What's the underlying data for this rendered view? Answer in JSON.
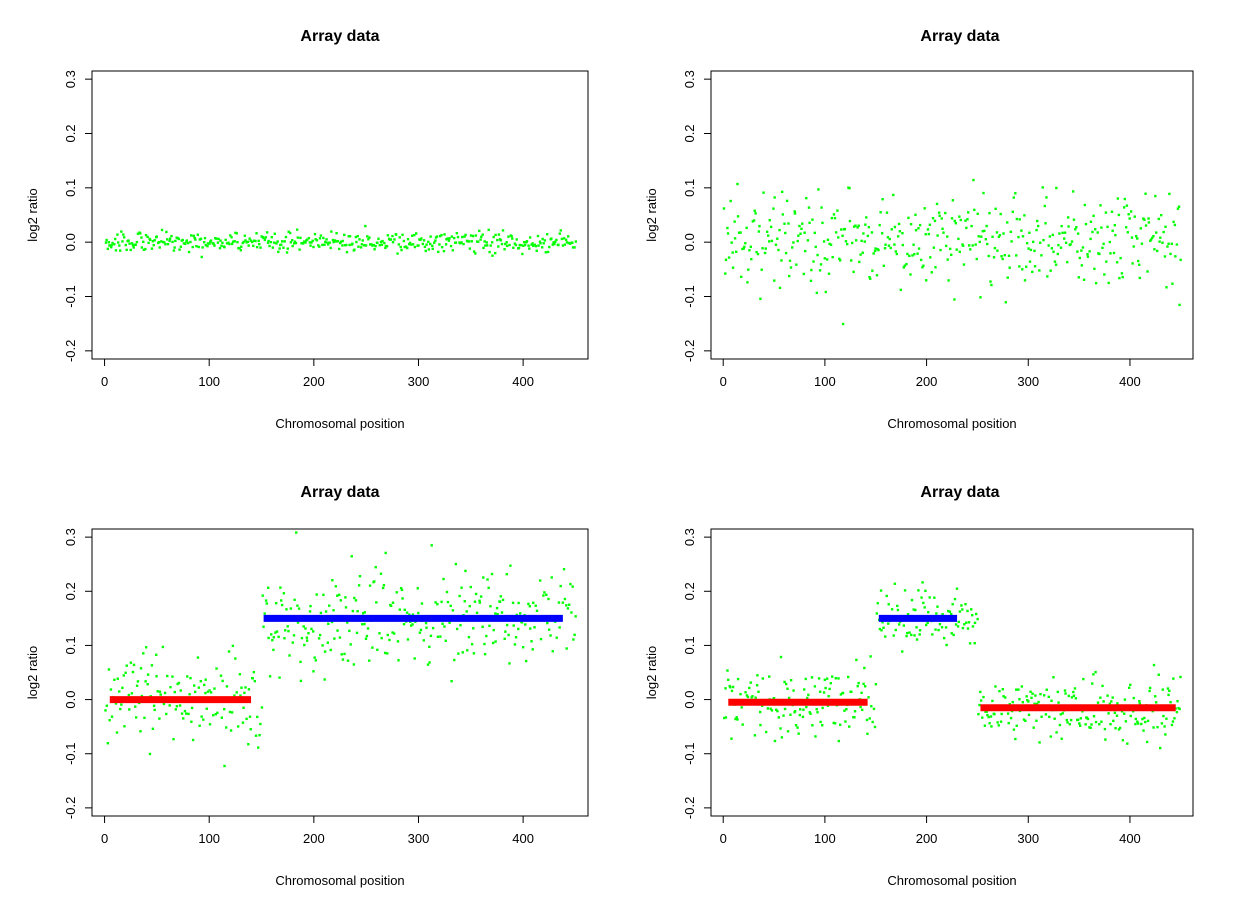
{
  "chart_data": [
    {
      "type": "scatter",
      "title": "Array data",
      "xlabel": "Chromosomal position",
      "ylabel": "log2 ratio",
      "xlim": [
        -12,
        462
      ],
      "ylim": [
        -0.215,
        0.315
      ],
      "xticks": [
        0,
        100,
        200,
        300,
        400
      ],
      "yticks": [
        -0.2,
        -0.1,
        0.0,
        0.1,
        0.2,
        0.3
      ],
      "xtick_labels": [
        "0",
        "100",
        "200",
        "300",
        "400"
      ],
      "ytick_labels": [
        "-0.2",
        "-0.1",
        "0.0",
        "0.1",
        "0.2",
        "0.3"
      ],
      "grid": false,
      "point_color": "#00ff00",
      "n_points": 450,
      "x_step": 1,
      "segments_of_points": [
        {
          "x_from": 1,
          "x_to": 450,
          "mean": 0.0,
          "sd": 0.009
        }
      ],
      "segment_lines": []
    },
    {
      "type": "scatter",
      "title": "Array data",
      "xlabel": "Chromosomal position",
      "ylabel": "log2 ratio",
      "xlim": [
        -12,
        462
      ],
      "ylim": [
        -0.215,
        0.315
      ],
      "xticks": [
        0,
        100,
        200,
        300,
        400
      ],
      "yticks": [
        -0.2,
        -0.1,
        0.0,
        0.1,
        0.2,
        0.3
      ],
      "xtick_labels": [
        "0",
        "100",
        "200",
        "300",
        "400"
      ],
      "ytick_labels": [
        "-0.2",
        "-0.1",
        "0.0",
        "0.1",
        "0.2",
        "0.3"
      ],
      "grid": false,
      "point_color": "#00ff00",
      "n_points": 450,
      "x_step": 1,
      "segments_of_points": [
        {
          "x_from": 1,
          "x_to": 450,
          "mean": 0.0,
          "sd": 0.045
        }
      ],
      "segment_lines": []
    },
    {
      "type": "scatter",
      "title": "Array data",
      "xlabel": "Chromosomal position",
      "ylabel": "log2 ratio",
      "xlim": [
        -12,
        462
      ],
      "ylim": [
        -0.215,
        0.315
      ],
      "xticks": [
        0,
        100,
        200,
        300,
        400
      ],
      "yticks": [
        -0.2,
        -0.1,
        0.0,
        0.1,
        0.2,
        0.3
      ],
      "xtick_labels": [
        "0",
        "100",
        "200",
        "300",
        "400"
      ],
      "ytick_labels": [
        "-0.2",
        "-0.1",
        "0.0",
        "0.1",
        "0.2",
        "0.3"
      ],
      "grid": false,
      "point_color": "#00ff00",
      "n_points": 450,
      "x_step": 1,
      "segments_of_points": [
        {
          "x_from": 1,
          "x_to": 150,
          "mean": 0.0,
          "sd": 0.045
        },
        {
          "x_from": 151,
          "x_to": 450,
          "mean": 0.15,
          "sd": 0.045
        }
      ],
      "segment_lines": [
        {
          "x_from": 5,
          "x_to": 140,
          "y": 0.0,
          "color": "#ff0000"
        },
        {
          "x_from": 152,
          "x_to": 438,
          "y": 0.15,
          "color": "#0000ff"
        }
      ]
    },
    {
      "type": "scatter",
      "title": "Array data",
      "xlabel": "Chromosomal position",
      "ylabel": "log2 ratio",
      "xlim": [
        -12,
        462
      ],
      "ylim": [
        -0.215,
        0.315
      ],
      "xticks": [
        0,
        100,
        200,
        300,
        400
      ],
      "yticks": [
        -0.2,
        -0.1,
        0.0,
        0.1,
        0.2,
        0.3
      ],
      "xtick_labels": [
        "0",
        "100",
        "200",
        "300",
        "400"
      ],
      "ytick_labels": [
        "-0.2",
        "-0.1",
        "0.0",
        "0.1",
        "0.2",
        "0.3"
      ],
      "grid": false,
      "point_color": "#00ff00",
      "n_points": 450,
      "x_step": 1,
      "segments_of_points": [
        {
          "x_from": 1,
          "x_to": 150,
          "mean": -0.005,
          "sd": 0.03
        },
        {
          "x_from": 151,
          "x_to": 250,
          "mean": 0.15,
          "sd": 0.03
        },
        {
          "x_from": 251,
          "x_to": 450,
          "mean": -0.015,
          "sd": 0.03
        }
      ],
      "segment_lines": [
        {
          "x_from": 5,
          "x_to": 142,
          "y": -0.005,
          "color": "#ff0000"
        },
        {
          "x_from": 153,
          "x_to": 230,
          "y": 0.15,
          "color": "#0000ff"
        },
        {
          "x_from": 253,
          "x_to": 445,
          "y": -0.015,
          "color": "#ff0000"
        }
      ]
    }
  ]
}
